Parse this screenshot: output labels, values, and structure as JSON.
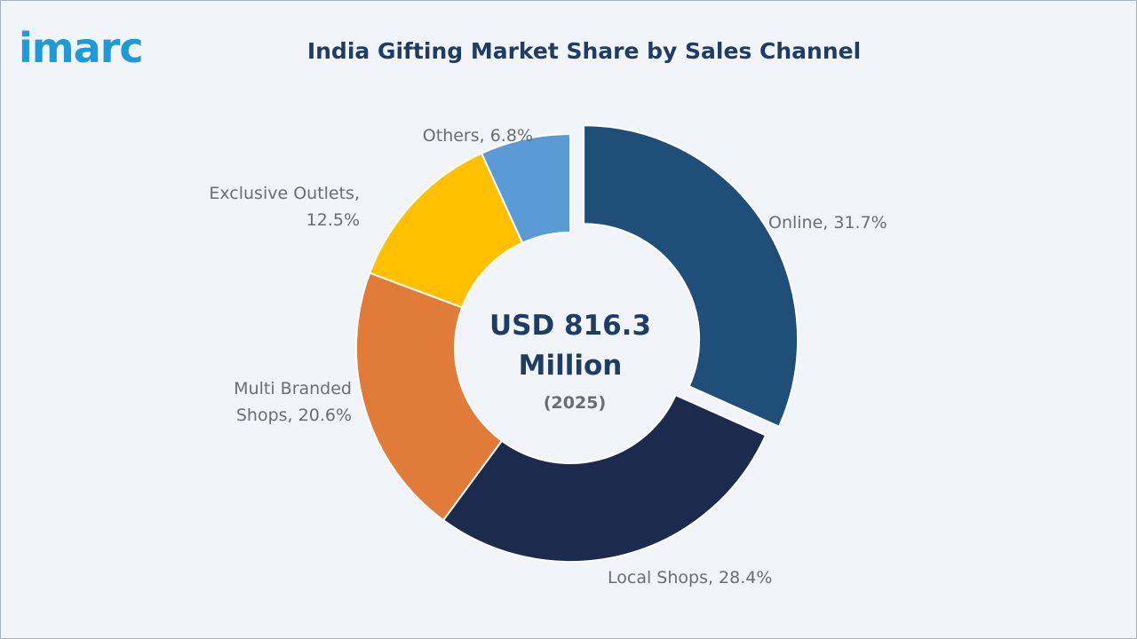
{
  "brand": {
    "logo_text": "imarc"
  },
  "chart_data": {
    "type": "pie",
    "title": "India Gifting Market Share by Sales Channel",
    "center": {
      "value_line1": "USD 816.3",
      "value_line2": "Million",
      "year": "(2025)"
    },
    "slices": [
      {
        "label": "Online, 31.7%",
        "name": "Online",
        "value": 31.7,
        "color": "#1f4e79",
        "exploded": true,
        "label_lines": [
          "Online, 31.7%"
        ]
      },
      {
        "label": "Local Shops, 28.4%",
        "name": "Local Shops",
        "value": 28.4,
        "color": "#1c2b4d",
        "label_lines": [
          "Local Shops, 28.4%"
        ]
      },
      {
        "label": "Multi Branded Shops, 20.6%",
        "name": "Multi Branded Shops",
        "value": 20.6,
        "color": "#e07b39",
        "label_lines": [
          "Multi Branded",
          "Shops, 20.6%"
        ]
      },
      {
        "label": "Exclusive Outlets, 12.5%",
        "name": "Exclusive Outlets",
        "value": 12.5,
        "color": "#ffc000",
        "label_lines": [
          "Exclusive Outlets,",
          "12.5%"
        ]
      },
      {
        "label": "Others, 6.8%",
        "name": "Others",
        "value": 6.8,
        "color": "#5b9bd5",
        "label_lines": [
          "Others, 6.8%"
        ]
      }
    ]
  }
}
